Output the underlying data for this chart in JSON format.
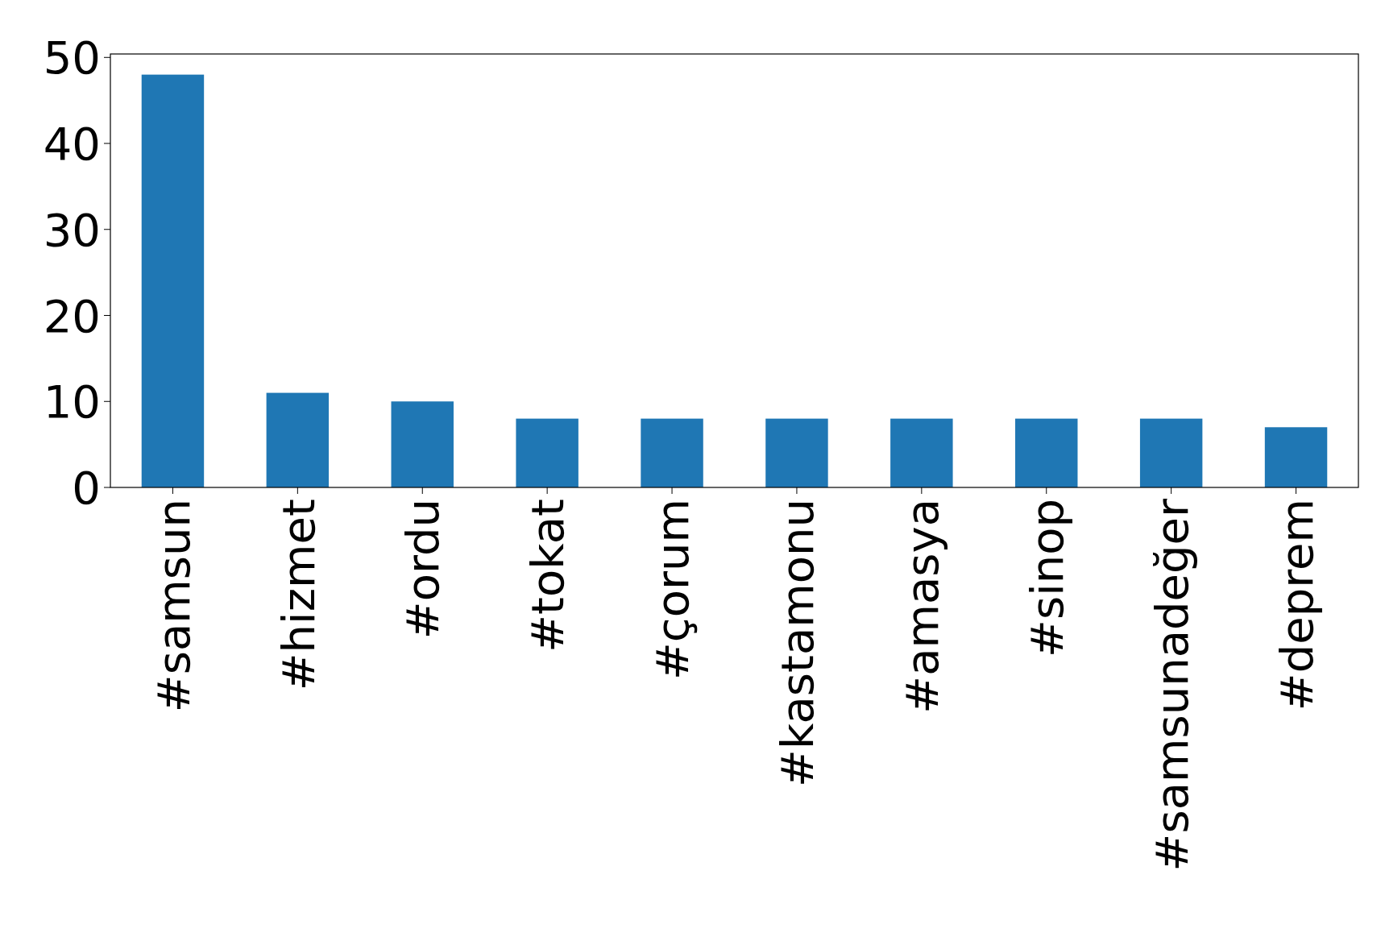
{
  "chart_data": {
    "type": "bar",
    "categories": [
      "#samsun",
      "#hizmet",
      "#ordu",
      "#tokat",
      "#çorum",
      "#kastamonu",
      "#amasya",
      "#sinop",
      "#samsunadeğer",
      "#deprem"
    ],
    "values": [
      48,
      11,
      10,
      8,
      8,
      8,
      8,
      8,
      8,
      7
    ],
    "color": "#1f77b4",
    "ylim": [
      0,
      50.4
    ],
    "yticks": [
      0,
      10,
      20,
      30,
      40,
      50
    ]
  }
}
